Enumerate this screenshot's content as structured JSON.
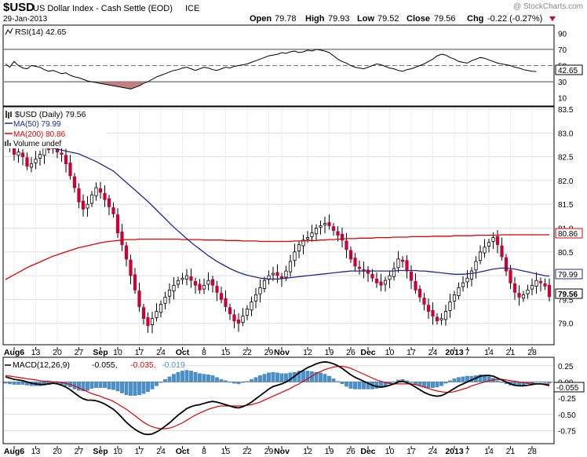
{
  "header": {
    "symbol": "$USD",
    "name": "US Dollar Index - Cash Settle (EOD)",
    "exchange": "ICE",
    "date": "29-Jan-2013",
    "watermark": "@ StockCharts.com",
    "open_label": "Open",
    "open": "79.78",
    "high_label": "High",
    "high": "79.93",
    "low_label": "Low",
    "low": "79.52",
    "close_label": "Close",
    "close": "79.56",
    "chg_label": "Chg",
    "chg": "-0.22 (-0.27%)"
  },
  "legend": {
    "rsi": "RSI(14) 42.65",
    "price": "$USD (Daily) 79.56",
    "ma50": "MA(50) 79.99",
    "ma200": "MA(200) 80.86",
    "volume": "Volume undef",
    "macd_label": "MACD(12,26,9)",
    "macd_val": "-0.055,",
    "signal_val": "-0.035,",
    "hist_val": "-0.019"
  },
  "badges": {
    "rsi": "42.65",
    "ma200": "80.86",
    "ma50": "79.99",
    "close": "79.56",
    "macd": "-0.055"
  },
  "colors": {
    "up": "#ffffff",
    "down": "#cc0033",
    "ma50": "#1f2a8c",
    "ma200": "#e00000",
    "macd": "#000000",
    "signal": "#e00000",
    "hist": "#4a90c8",
    "rsi_oversold_fill": "#c08080"
  },
  "x_labels": [
    {
      "i": 2,
      "label": "Aug6"
    },
    {
      "i": 7,
      "label": "13"
    },
    {
      "i": 12,
      "label": "20"
    },
    {
      "i": 17,
      "label": "27"
    },
    {
      "i": 22,
      "label": "Sep"
    },
    {
      "i": 26,
      "label": "10"
    },
    {
      "i": 31,
      "label": "17"
    },
    {
      "i": 36,
      "label": "24"
    },
    {
      "i": 41,
      "label": "Oct"
    },
    {
      "i": 46,
      "label": "8"
    },
    {
      "i": 51,
      "label": "15"
    },
    {
      "i": 56,
      "label": "22"
    },
    {
      "i": 61,
      "label": "29"
    },
    {
      "i": 64,
      "label": "Nov"
    },
    {
      "i": 70,
      "label": "12"
    },
    {
      "i": 75,
      "label": "19"
    },
    {
      "i": 80,
      "label": "26"
    },
    {
      "i": 84,
      "label": "Dec"
    },
    {
      "i": 89,
      "label": "10"
    },
    {
      "i": 94,
      "label": "17"
    },
    {
      "i": 99,
      "label": "24"
    },
    {
      "i": 104,
      "label": "2013"
    },
    {
      "i": 107,
      "label": "7"
    },
    {
      "i": 112,
      "label": "14"
    },
    {
      "i": 117,
      "label": "21"
    },
    {
      "i": 122,
      "label": "28"
    }
  ],
  "chart_data": [
    {
      "type": "line",
      "name": "RSI(14)",
      "ylim": [
        0,
        100
      ],
      "yticks": [
        90,
        70,
        50,
        30,
        10
      ],
      "reference_lines": [
        70,
        50,
        30
      ],
      "values": [
        52,
        48,
        55,
        50,
        47,
        46,
        50,
        49,
        48,
        45,
        43,
        44,
        42,
        40,
        41,
        38,
        36,
        35,
        33,
        31,
        30,
        29,
        28,
        27,
        26,
        25,
        24,
        23,
        22,
        21,
        23,
        25,
        28,
        30,
        33,
        36,
        38,
        40,
        42,
        44,
        45,
        47,
        48,
        46,
        44,
        46,
        48,
        47,
        45,
        44,
        46,
        48,
        47,
        49,
        50,
        51,
        52,
        54,
        56,
        58,
        60,
        62,
        63,
        64,
        66,
        65,
        67,
        68,
        66,
        67,
        69,
        68,
        70,
        69,
        68,
        66,
        62,
        58,
        55,
        53,
        50,
        48,
        47,
        46,
        48,
        50,
        52,
        51,
        49,
        47,
        46,
        44,
        43,
        45,
        46,
        48,
        50,
        52,
        55,
        58,
        62,
        64,
        63,
        60,
        58,
        55,
        54,
        53,
        56,
        58,
        60,
        59,
        57,
        55,
        53,
        52,
        51,
        50,
        48,
        47,
        45,
        44,
        43,
        42.65
      ]
    },
    {
      "type": "candlestick",
      "name": "$USD (Daily)",
      "ylim": [
        78.55,
        83.55
      ],
      "yticks": [
        83.5,
        83.0,
        82.5,
        82.0,
        81.5,
        81.0,
        80.5,
        80.0,
        79.5,
        79.0
      ],
      "overlays": [
        "MA(50)",
        "MA(200)"
      ],
      "close": [
        82.75,
        82.7,
        82.55,
        82.6,
        82.5,
        82.3,
        82.35,
        82.45,
        82.55,
        82.7,
        82.65,
        82.7,
        82.6,
        82.55,
        82.35,
        82.1,
        81.85,
        81.55,
        81.4,
        81.5,
        81.7,
        81.85,
        81.75,
        81.6,
        81.45,
        81.3,
        80.9,
        80.65,
        80.35,
        80.0,
        79.7,
        79.35,
        79.1,
        78.95,
        79.1,
        79.25,
        79.4,
        79.55,
        79.7,
        79.8,
        79.9,
        79.95,
        80.0,
        79.9,
        79.8,
        79.7,
        79.8,
        79.9,
        79.8,
        79.65,
        79.5,
        79.35,
        79.2,
        79.05,
        79.0,
        79.15,
        79.3,
        79.45,
        79.6,
        79.75,
        79.9,
        80.0,
        80.05,
        80.0,
        79.95,
        80.1,
        80.3,
        80.5,
        80.65,
        80.75,
        80.8,
        80.9,
        81.0,
        81.05,
        81.1,
        81.05,
        80.95,
        80.85,
        80.75,
        80.55,
        80.35,
        80.2,
        80.15,
        80.1,
        80.05,
        79.95,
        79.85,
        79.8,
        79.9,
        80.0,
        80.15,
        80.35,
        80.3,
        80.1,
        79.9,
        79.7,
        79.55,
        79.4,
        79.25,
        79.15,
        79.05,
        79.1,
        79.25,
        79.45,
        79.6,
        79.75,
        79.85,
        79.95,
        80.1,
        80.3,
        80.5,
        80.6,
        80.7,
        80.8,
        80.65,
        80.4,
        80.1,
        79.85,
        79.65,
        79.55,
        79.6,
        79.7,
        79.8,
        79.9,
        79.85,
        79.78,
        79.56
      ],
      "ma50": [
        82.9,
        82.88,
        82.86,
        82.84,
        82.82,
        82.8,
        82.78,
        82.76,
        82.74,
        82.72,
        82.7,
        82.68,
        82.66,
        82.64,
        82.62,
        82.6,
        82.58,
        82.56,
        82.52,
        82.48,
        82.44,
        82.4,
        82.35,
        82.3,
        82.25,
        82.2,
        82.12,
        82.04,
        81.96,
        81.88,
        81.8,
        81.72,
        81.64,
        81.56,
        81.47,
        81.38,
        81.29,
        81.2,
        81.11,
        81.02,
        80.94,
        80.86,
        80.78,
        80.7,
        80.63,
        80.56,
        80.49,
        80.42,
        80.36,
        80.3,
        80.25,
        80.2,
        80.15,
        80.11,
        80.07,
        80.04,
        80.01,
        79.99,
        79.97,
        79.95,
        79.94,
        79.93,
        79.93,
        79.93,
        79.94,
        79.95,
        79.96,
        79.97,
        79.98,
        79.99,
        80.0,
        80.01,
        80.02,
        80.03,
        80.04,
        80.05,
        80.06,
        80.07,
        80.08,
        80.09,
        80.1,
        80.1,
        80.1,
        80.1,
        80.1,
        80.1,
        80.1,
        80.1,
        80.1,
        80.1,
        80.1,
        80.11,
        80.11,
        80.11,
        80.11,
        80.11,
        80.1,
        80.1,
        80.09,
        80.08,
        80.07,
        80.06,
        80.05,
        80.04,
        80.03,
        80.03,
        80.03,
        80.04,
        80.05,
        80.06,
        80.08,
        80.1,
        80.12,
        80.14,
        80.15,
        80.16,
        80.16,
        80.15,
        80.14,
        80.12,
        80.1,
        80.08,
        80.06,
        80.04,
        80.02,
        80.0,
        79.99
      ],
      "ma200": [
        79.92,
        79.97,
        80.02,
        80.07,
        80.12,
        80.17,
        80.21,
        80.25,
        80.29,
        80.33,
        80.37,
        80.41,
        80.44,
        80.47,
        80.5,
        80.53,
        80.56,
        80.59,
        80.61,
        80.63,
        80.65,
        80.67,
        80.69,
        80.71,
        80.72,
        80.73,
        80.74,
        80.75,
        80.76,
        80.76,
        80.76,
        80.77,
        80.77,
        80.77,
        80.77,
        80.77,
        80.77,
        80.77,
        80.77,
        80.77,
        80.77,
        80.76,
        80.76,
        80.76,
        80.76,
        80.76,
        80.75,
        80.75,
        80.75,
        80.75,
        80.75,
        80.74,
        80.74,
        80.74,
        80.74,
        80.73,
        80.73,
        80.73,
        80.73,
        80.72,
        80.72,
        80.72,
        80.72,
        80.72,
        80.72,
        80.72,
        80.72,
        80.73,
        80.73,
        80.73,
        80.74,
        80.74,
        80.74,
        80.75,
        80.75,
        80.76,
        80.76,
        80.77,
        80.77,
        80.78,
        80.78,
        80.78,
        80.79,
        80.79,
        80.79,
        80.79,
        80.8,
        80.8,
        80.8,
        80.8,
        80.81,
        80.81,
        80.81,
        80.81,
        80.82,
        80.82,
        80.82,
        80.82,
        80.82,
        80.83,
        80.83,
        80.83,
        80.83,
        80.83,
        80.84,
        80.84,
        80.84,
        80.84,
        80.84,
        80.85,
        80.85,
        80.85,
        80.85,
        80.85,
        80.85,
        80.86,
        80.86,
        80.86,
        80.86,
        80.86,
        80.86,
        80.86,
        80.86,
        80.86,
        80.86,
        80.86,
        80.86
      ]
    },
    {
      "type": "line",
      "name": "MACD(12,26,9)",
      "ylim": [
        -0.95,
        0.38
      ],
      "yticks": [
        0.25,
        0.0,
        -0.25,
        -0.5,
        -0.75
      ],
      "macd": [
        0.08,
        0.06,
        0.04,
        0.03,
        0.02,
        0.0,
        -0.02,
        -0.03,
        -0.04,
        -0.04,
        -0.03,
        -0.02,
        -0.03,
        -0.05,
        -0.08,
        -0.12,
        -0.17,
        -0.22,
        -0.26,
        -0.28,
        -0.28,
        -0.29,
        -0.31,
        -0.34,
        -0.38,
        -0.42,
        -0.48,
        -0.55,
        -0.62,
        -0.68,
        -0.73,
        -0.77,
        -0.8,
        -0.81,
        -0.8,
        -0.77,
        -0.73,
        -0.68,
        -0.63,
        -0.57,
        -0.51,
        -0.46,
        -0.41,
        -0.38,
        -0.36,
        -0.35,
        -0.33,
        -0.31,
        -0.3,
        -0.31,
        -0.33,
        -0.35,
        -0.37,
        -0.39,
        -0.4,
        -0.38,
        -0.35,
        -0.31,
        -0.26,
        -0.21,
        -0.16,
        -0.11,
        -0.07,
        -0.05,
        -0.03,
        0.0,
        0.04,
        0.09,
        0.14,
        0.18,
        0.22,
        0.25,
        0.28,
        0.3,
        0.31,
        0.3,
        0.28,
        0.25,
        0.21,
        0.16,
        0.11,
        0.07,
        0.04,
        0.01,
        -0.02,
        -0.05,
        -0.07,
        -0.08,
        -0.07,
        -0.05,
        -0.03,
        0.0,
        0.01,
        -0.01,
        -0.04,
        -0.08,
        -0.12,
        -0.16,
        -0.19,
        -0.21,
        -0.22,
        -0.21,
        -0.18,
        -0.14,
        -0.1,
        -0.06,
        -0.03,
        0.0,
        0.03,
        0.06,
        0.09,
        0.1,
        0.1,
        0.09,
        0.06,
        0.03,
        0.0,
        -0.03,
        -0.05,
        -0.06,
        -0.06,
        -0.05,
        -0.04,
        -0.03,
        -0.03,
        -0.04,
        -0.055
      ],
      "signal": [
        0.1,
        0.09,
        0.08,
        0.07,
        0.06,
        0.05,
        0.04,
        0.03,
        0.02,
        0.01,
        0.01,
        0.0,
        0.0,
        -0.01,
        -0.02,
        -0.04,
        -0.06,
        -0.09,
        -0.12,
        -0.15,
        -0.18,
        -0.2,
        -0.22,
        -0.25,
        -0.27,
        -0.3,
        -0.34,
        -0.38,
        -0.42,
        -0.47,
        -0.52,
        -0.57,
        -0.62,
        -0.66,
        -0.69,
        -0.71,
        -0.72,
        -0.72,
        -0.71,
        -0.69,
        -0.66,
        -0.63,
        -0.59,
        -0.55,
        -0.51,
        -0.48,
        -0.45,
        -0.42,
        -0.4,
        -0.38,
        -0.37,
        -0.37,
        -0.37,
        -0.37,
        -0.37,
        -0.37,
        -0.36,
        -0.35,
        -0.33,
        -0.31,
        -0.28,
        -0.25,
        -0.22,
        -0.19,
        -0.16,
        -0.13,
        -0.1,
        -0.06,
        -0.03,
        0.01,
        0.05,
        0.09,
        0.13,
        0.16,
        0.19,
        0.21,
        0.23,
        0.24,
        0.24,
        0.23,
        0.21,
        0.18,
        0.15,
        0.12,
        0.09,
        0.06,
        0.03,
        0.01,
        -0.01,
        -0.02,
        -0.03,
        -0.03,
        -0.03,
        -0.03,
        -0.03,
        -0.04,
        -0.06,
        -0.08,
        -0.1,
        -0.12,
        -0.14,
        -0.15,
        -0.16,
        -0.16,
        -0.15,
        -0.13,
        -0.11,
        -0.09,
        -0.06,
        -0.04,
        -0.02,
        0.0,
        0.02,
        0.03,
        0.04,
        0.04,
        0.03,
        0.02,
        0.01,
        0.0,
        -0.01,
        -0.02,
        -0.02,
        -0.03,
        -0.03,
        -0.03,
        -0.035
      ]
    }
  ]
}
